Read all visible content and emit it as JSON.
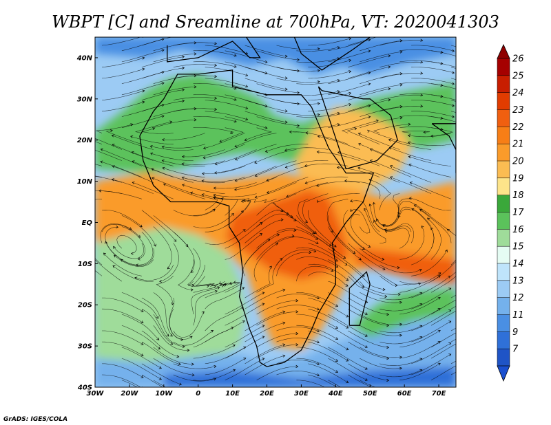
{
  "title": "WBPT [C] and Sreamline at 700hPa, VT: 2020041303",
  "credit": "GrADS: IGES/COLA",
  "map": {
    "lon_range": [
      -30,
      75
    ],
    "lat_range": [
      -40,
      45
    ],
    "lon_ticks": [
      {
        "value": -30,
        "label": "30W"
      },
      {
        "value": -20,
        "label": "20W"
      },
      {
        "value": -10,
        "label": "10W"
      },
      {
        "value": 0,
        "label": "0"
      },
      {
        "value": 10,
        "label": "10E"
      },
      {
        "value": 20,
        "label": "20E"
      },
      {
        "value": 30,
        "label": "30E"
      },
      {
        "value": 40,
        "label": "40E"
      },
      {
        "value": 50,
        "label": "50E"
      },
      {
        "value": 60,
        "label": "60E"
      },
      {
        "value": 70,
        "label": "70E"
      }
    ],
    "lat_ticks": [
      {
        "value": 40,
        "label": "40N"
      },
      {
        "value": 30,
        "label": "30N"
      },
      {
        "value": 20,
        "label": "20N"
      },
      {
        "value": 10,
        "label": "10N"
      },
      {
        "value": 0,
        "label": "EQ"
      },
      {
        "value": -10,
        "label": "10S"
      },
      {
        "value": -20,
        "label": "20S"
      },
      {
        "value": -30,
        "label": "30S"
      },
      {
        "value": -40,
        "label": "40S"
      }
    ]
  },
  "colorbar": {
    "labels": [
      "26",
      "25",
      "24",
      "23",
      "22",
      "21",
      "20",
      "19",
      "18",
      "17",
      "16",
      "15",
      "14",
      "13",
      "12",
      "11",
      "9",
      "7"
    ],
    "colors": [
      "#a50000",
      "#c81e00",
      "#e13c00",
      "#f05f10",
      "#f77e16",
      "#fa9b2a",
      "#fbbc52",
      "#fde48a",
      "#3aa83a",
      "#5bc25b",
      "#9fdc9a",
      "#e5fcf3",
      "#bfe4fb",
      "#9ccbf4",
      "#74b1ec",
      "#4a8fe3",
      "#2f70d8",
      "#1f54c6"
    ]
  },
  "regions": [
    {
      "name": "north-blue",
      "color": "#4a8fe3",
      "pts": [
        [
          -30,
          45
        ],
        [
          75,
          45
        ],
        [
          75,
          41
        ],
        [
          62,
          39
        ],
        [
          50,
          36
        ],
        [
          42,
          38
        ],
        [
          34,
          36
        ],
        [
          25,
          40
        ],
        [
          15,
          38
        ],
        [
          5,
          40
        ],
        [
          -5,
          42
        ],
        [
          -15,
          40
        ],
        [
          -30,
          41
        ]
      ]
    },
    {
      "name": "sahara-green",
      "color": "#5bc25b",
      "pts": [
        [
          -30,
          22
        ],
        [
          -22,
          27
        ],
        [
          -15,
          32
        ],
        [
          -8,
          35
        ],
        [
          0,
          36
        ],
        [
          10,
          33
        ],
        [
          18,
          30
        ],
        [
          22,
          26
        ],
        [
          30,
          24
        ],
        [
          40,
          27
        ],
        [
          50,
          30
        ],
        [
          62,
          32
        ],
        [
          75,
          34
        ],
        [
          75,
          20
        ],
        [
          65,
          18
        ],
        [
          55,
          20
        ],
        [
          45,
          18
        ],
        [
          35,
          15
        ],
        [
          25,
          15
        ],
        [
          15,
          17
        ],
        [
          5,
          16
        ],
        [
          -5,
          13
        ],
        [
          -15,
          12
        ],
        [
          -30,
          13
        ]
      ]
    },
    {
      "name": "arabia-orange",
      "color": "#fbbc52",
      "pts": [
        [
          28,
          14
        ],
        [
          33,
          22
        ],
        [
          40,
          28
        ],
        [
          48,
          27
        ],
        [
          55,
          24
        ],
        [
          60,
          22
        ],
        [
          62,
          18
        ],
        [
          58,
          12
        ],
        [
          50,
          8
        ],
        [
          40,
          6
        ],
        [
          32,
          8
        ]
      ]
    },
    {
      "name": "tropics-orange",
      "color": "#fa9b2a",
      "pts": [
        [
          -30,
          10
        ],
        [
          -15,
          12
        ],
        [
          -5,
          11
        ],
        [
          5,
          10
        ],
        [
          15,
          11
        ],
        [
          25,
          12
        ],
        [
          35,
          10
        ],
        [
          45,
          8
        ],
        [
          55,
          6
        ],
        [
          65,
          8
        ],
        [
          75,
          10
        ],
        [
          75,
          -15
        ],
        [
          65,
          -13
        ],
        [
          55,
          -10
        ],
        [
          45,
          -12
        ],
        [
          40,
          -20
        ],
        [
          35,
          -27
        ],
        [
          30,
          -31
        ],
        [
          22,
          -30
        ],
        [
          18,
          -22
        ],
        [
          14,
          -12
        ],
        [
          8,
          -7
        ],
        [
          0,
          -3
        ],
        [
          -10,
          -1
        ],
        [
          -20,
          -3
        ],
        [
          -30,
          -5
        ]
      ]
    },
    {
      "name": "congo-core",
      "color": "#f05f10",
      "pts": [
        [
          10,
          2
        ],
        [
          18,
          4
        ],
        [
          25,
          6
        ],
        [
          32,
          8
        ],
        [
          38,
          6
        ],
        [
          42,
          -2
        ],
        [
          44,
          -8
        ],
        [
          38,
          -12
        ],
        [
          30,
          -14
        ],
        [
          22,
          -12
        ],
        [
          15,
          -8
        ],
        [
          8,
          -4
        ]
      ]
    },
    {
      "name": "indian-band",
      "color": "#f05f10",
      "pts": [
        [
          45,
          -6
        ],
        [
          55,
          -7
        ],
        [
          65,
          -8
        ],
        [
          75,
          -9
        ],
        [
          75,
          -15
        ],
        [
          65,
          -14
        ],
        [
          55,
          -12
        ],
        [
          46,
          -10
        ]
      ]
    },
    {
      "name": "atlantic-green",
      "color": "#9fdc9a",
      "pts": [
        [
          -30,
          -5
        ],
        [
          -20,
          -3
        ],
        [
          -10,
          -1
        ],
        [
          0,
          -3
        ],
        [
          8,
          -7
        ],
        [
          12,
          -14
        ],
        [
          14,
          -22
        ],
        [
          12,
          -30
        ],
        [
          5,
          -33
        ],
        [
          -5,
          -34
        ],
        [
          -15,
          -34
        ],
        [
          -30,
          -33
        ]
      ]
    },
    {
      "name": "south-blue",
      "color": "#74b1ec",
      "pts": [
        [
          -30,
          -33
        ],
        [
          -15,
          -34
        ],
        [
          -5,
          -33
        ],
        [
          5,
          -32
        ],
        [
          12,
          -32
        ],
        [
          20,
          -34
        ],
        [
          30,
          -33
        ],
        [
          38,
          -30
        ],
        [
          45,
          -28
        ],
        [
          55,
          -25
        ],
        [
          65,
          -24
        ],
        [
          75,
          -22
        ],
        [
          75,
          -40
        ],
        [
          -30,
          -40
        ]
      ]
    },
    {
      "name": "indian-green",
      "color": "#5bc25b",
      "pts": [
        [
          45,
          -25
        ],
        [
          52,
          -20
        ],
        [
          60,
          -17
        ],
        [
          75,
          -16
        ],
        [
          75,
          -22
        ],
        [
          62,
          -24
        ],
        [
          50,
          -28
        ]
      ]
    },
    {
      "name": "south-deep",
      "color": "#2f70d8",
      "pts": [
        [
          -10,
          -37
        ],
        [
          10,
          -36
        ],
        [
          30,
          -38
        ],
        [
          50,
          -36
        ],
        [
          75,
          -35
        ],
        [
          75,
          -40
        ],
        [
          -10,
          -40
        ]
      ]
    }
  ],
  "coastline": {
    "africa": [
      [
        -17,
        21
      ],
      [
        -16,
        15
      ],
      [
        -13,
        9
      ],
      [
        -8,
        5
      ],
      [
        -3,
        5
      ],
      [
        5,
        5
      ],
      [
        9,
        4
      ],
      [
        9,
        -1
      ],
      [
        12,
        -5
      ],
      [
        13,
        -12
      ],
      [
        12,
        -18
      ],
      [
        15,
        -26
      ],
      [
        17,
        -30
      ],
      [
        18,
        -34
      ],
      [
        20,
        -35
      ],
      [
        25,
        -34
      ],
      [
        30,
        -31
      ],
      [
        33,
        -26
      ],
      [
        35,
        -22
      ],
      [
        40,
        -15
      ],
      [
        40,
        -10
      ],
      [
        39,
        -5
      ],
      [
        43,
        0
      ],
      [
        48,
        5
      ],
      [
        51,
        12
      ],
      [
        43,
        12
      ],
      [
        38,
        18
      ],
      [
        33,
        28
      ],
      [
        30,
        31
      ],
      [
        20,
        31
      ],
      [
        10,
        33
      ],
      [
        10,
        37
      ],
      [
        0,
        36
      ],
      [
        -6,
        36
      ],
      [
        -10,
        30
      ],
      [
        -13,
        27
      ],
      [
        -17,
        21
      ]
    ],
    "arabia": [
      [
        35,
        33
      ],
      [
        43,
        13
      ],
      [
        52,
        15
      ],
      [
        58,
        20
      ],
      [
        56,
        26
      ],
      [
        50,
        30
      ],
      [
        48,
        30
      ],
      [
        36,
        32
      ],
      [
        35,
        33
      ]
    ],
    "madagascar": [
      [
        44,
        -25
      ],
      [
        47,
        -25
      ],
      [
        50,
        -15
      ],
      [
        49,
        -12
      ],
      [
        44,
        -16
      ],
      [
        44,
        -25
      ]
    ],
    "india": [
      [
        68,
        24
      ],
      [
        73,
        21
      ],
      [
        76,
        16
      ],
      [
        75,
        12
      ],
      [
        75,
        24
      ],
      [
        68,
        24
      ]
    ],
    "europe": [
      [
        -9,
        43
      ],
      [
        -9,
        39
      ],
      [
        0,
        40
      ],
      [
        10,
        44
      ],
      [
        15,
        40
      ],
      [
        18,
        40
      ],
      [
        14,
        45
      ],
      [
        28,
        45
      ],
      [
        30,
        41
      ],
      [
        36,
        37
      ],
      [
        45,
        42
      ],
      [
        50,
        45
      ],
      [
        -9,
        45
      ]
    ]
  }
}
